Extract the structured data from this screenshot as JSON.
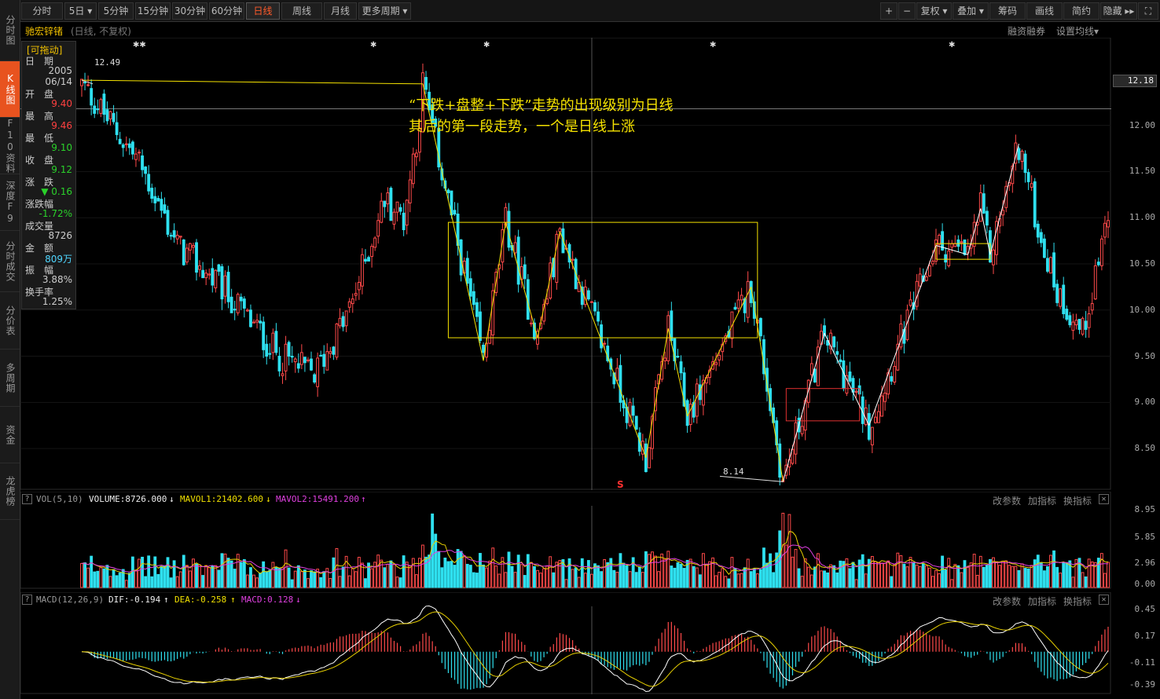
{
  "sidebar": {
    "tabs": [
      {
        "label": "分时图",
        "active": false
      },
      {
        "label": "K线图",
        "active": true
      },
      {
        "label": "F10资料",
        "active": false
      },
      {
        "label": "深度F9",
        "active": false
      },
      {
        "label": "分时成交",
        "active": false
      },
      {
        "label": "分价表",
        "active": false
      },
      {
        "label": "多周期",
        "active": false
      },
      {
        "label": "资金",
        "active": false
      },
      {
        "label": "龙虎榜",
        "active": false
      }
    ]
  },
  "toolbar": {
    "periods": [
      {
        "label": "分时"
      },
      {
        "label": "5日 ▾"
      },
      {
        "label": "5分钟"
      },
      {
        "label": "15分钟"
      },
      {
        "label": "30分钟"
      },
      {
        "label": "60分钟"
      },
      {
        "label": "日线",
        "active": true
      },
      {
        "label": "周线"
      },
      {
        "label": "月线"
      },
      {
        "label": "更多周期 ▾"
      }
    ],
    "right_tools": [
      "+",
      "−",
      "复权 ▾",
      "叠加 ▾",
      "筹码",
      "画线",
      "简约",
      "隐藏 ▸▸",
      "⛶"
    ]
  },
  "header": {
    "stock_name": "驰宏锌锗",
    "period_note": "(日线, 不复权)",
    "margin_link": "融资融券",
    "ma_setting": "设置均线▾"
  },
  "info_panel": {
    "drag_tag": "[可拖动]",
    "date_label": "日　期",
    "date_year": "2005",
    "date_md": "06/14",
    "open_label": "开　盘",
    "open": "9.40",
    "high_label": "最　高",
    "high": "9.46",
    "low_label": "最　低",
    "low": "9.10",
    "close_label": "收　盘",
    "close": "9.12",
    "change_label": "涨　跌",
    "change": "▼ 0.16",
    "pct_label": "涨跌幅",
    "pct": "-1.72%",
    "vol_label": "成交量",
    "vol": "8726",
    "amount_label": "金　额",
    "amount": "809万",
    "amp_label": "振　幅",
    "amp": "3.88%",
    "turnover_label": "换手率",
    "turnover": "1.25%"
  },
  "annotation": {
    "line1": "“下跌+盘整+下跌”走势的出现级别为日线",
    "line2": "其后的第一段走势，一个是日线上涨"
  },
  "price_tags": {
    "high": "12.49",
    "low": "8.14",
    "crosshair": "12.18"
  },
  "s_mark": "S",
  "volume_panel": {
    "name": "VOL(5,10)",
    "volume": "VOLUME:8726.000",
    "mavol1": "MAVOL1:21402.600",
    "mavol2": "MAVOL2:15491.200",
    "arrow1": "↓",
    "arrow2": "↓",
    "arrow3": "↑",
    "tools": [
      "改参数",
      "加指标",
      "换指标"
    ],
    "axis": [
      "8.95",
      "5.85",
      "2.96",
      "0.00"
    ]
  },
  "macd_panel": {
    "name": "MACD(12,26,9)",
    "dif": "DIF:-0.194",
    "dea": "DEA:-0.258",
    "macd": "MACD:0.128",
    "arrow1": "↑",
    "arrow2": "↑",
    "arrow3": "↓",
    "tools": [
      "改参数",
      "加指标",
      "换指标"
    ],
    "axis": [
      "0.45",
      "0.17",
      "-0.11",
      "-0.39"
    ]
  },
  "colors": {
    "up": "#ff4a4a",
    "down": "#2fe0ef",
    "annotation": "#f5e200",
    "box_yellow": "#f5e200",
    "box_red": "#e03030",
    "ma1": "#ffffff",
    "ma2": "#e8d000",
    "ma3": "#e040e0"
  },
  "chart_data": {
    "type": "candlestick",
    "price_axis": {
      "ticks": [
        "12.00",
        "11.50",
        "11.00",
        "10.50",
        "10.00",
        "9.50",
        "9.00",
        "8.50"
      ],
      "ylim": [
        8.05,
        12.95
      ]
    },
    "candles": [],
    "swing_points": [
      {
        "day": 0,
        "price": 12.49
      },
      {
        "day": 107,
        "price": 12.45
      },
      {
        "day": 126,
        "price": 9.45
      },
      {
        "day": 133,
        "price": 10.95
      },
      {
        "day": 143,
        "price": 9.7
      },
      {
        "day": 150,
        "price": 10.85
      },
      {
        "day": 177,
        "price": 8.4
      },
      {
        "day": 184,
        "price": 9.8
      },
      {
        "day": 190,
        "price": 8.85
      },
      {
        "day": 210,
        "price": 10.25
      },
      {
        "day": 220,
        "price": 8.14
      },
      {
        "day": 233,
        "price": 9.75
      },
      {
        "day": 247,
        "price": 8.75
      },
      {
        "day": 268,
        "price": 10.7
      },
      {
        "day": 278,
        "price": 10.6
      },
      {
        "day": 282,
        "price": 11.1
      },
      {
        "day": 285,
        "price": 10.6
      },
      {
        "day": 294,
        "price": 11.8
      }
    ],
    "boxes": [
      {
        "color": "yellow",
        "day_start": 115,
        "day_end": 212,
        "top": 10.95,
        "bottom": 9.7
      },
      {
        "color": "red",
        "day_start": 221,
        "day_end": 244,
        "top": 9.15,
        "bottom": 8.8
      },
      {
        "color": "yellow",
        "day_start": 268,
        "day_end": 285,
        "top": 10.72,
        "bottom": 10.55
      }
    ],
    "legend": ""
  }
}
